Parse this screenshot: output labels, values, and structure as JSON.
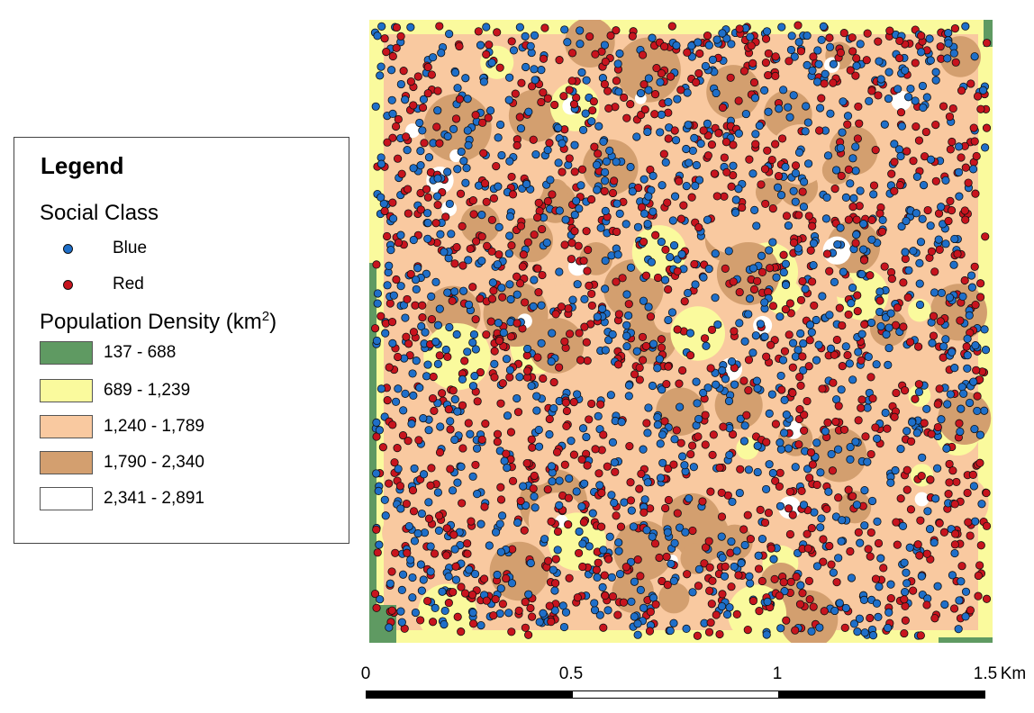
{
  "legend": {
    "title": "Legend",
    "social_class": {
      "heading": "Social Class",
      "items": [
        {
          "label": "Blue",
          "color": "#1f6fc9"
        },
        {
          "label": "Red",
          "color": "#c8141e"
        }
      ]
    },
    "density": {
      "heading_prefix": "Population Density (km",
      "heading_sup": "2",
      "heading_suffix": ")",
      "classes": [
        {
          "label": "137 - 688",
          "color": "#5f9a62"
        },
        {
          "label": "689 - 1,239",
          "color": "#fafa9d"
        },
        {
          "label": "1,240 - 1,789",
          "color": "#f9c9a0"
        },
        {
          "label": "1,790 - 2,340",
          "color": "#d39f6f"
        },
        {
          "label": "2,341 - 2,891",
          "color": "#ffffff"
        }
      ]
    }
  },
  "scale_bar": {
    "ticks": [
      "0",
      "0.5",
      "1",
      "1.5"
    ],
    "unit": "Km"
  }
}
